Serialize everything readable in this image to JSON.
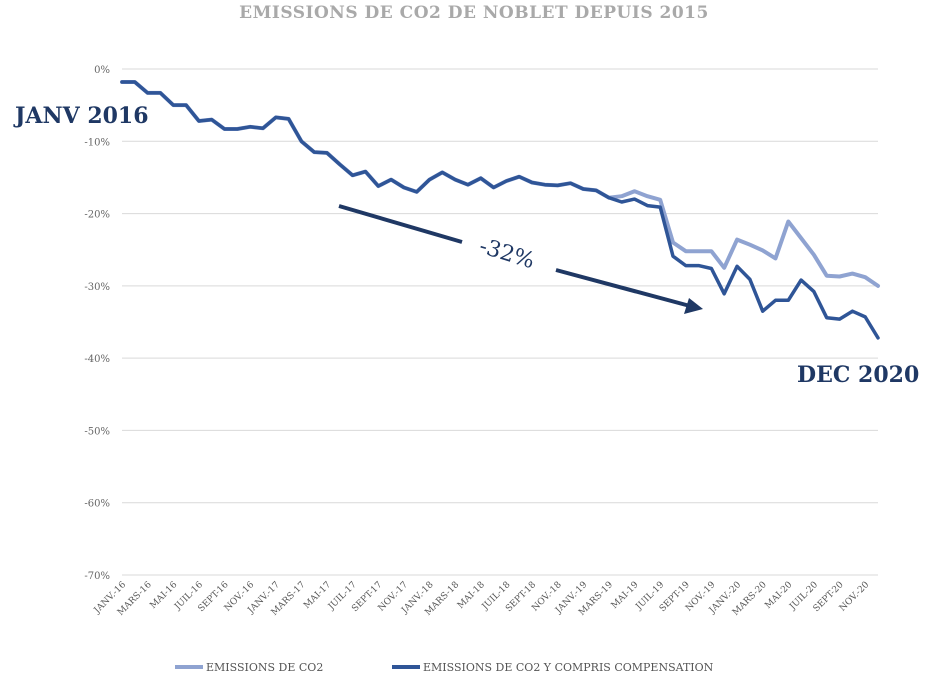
{
  "chart_data": {
    "type": "line",
    "title": "EMISSIONS DE CO2 DE NOBLET DEPUIS 2015",
    "xlabel": "",
    "ylabel": "",
    "ylim": [
      -70,
      0
    ],
    "yticks": [
      "0%",
      "-10%",
      "-20%",
      "-30%",
      "-40%",
      "-50%",
      "-60%",
      "-70%"
    ],
    "ytick_values": [
      0,
      -10,
      -20,
      -30,
      -40,
      -50,
      -60,
      -70
    ],
    "grid": true,
    "legend_position": "bottom",
    "x_tick_labels": [
      "JANV.-16",
      "MARS-16",
      "MAI-16",
      "JUIL-16",
      "SEPT-16",
      "NOV.-16",
      "JANV.-17",
      "MARS-17",
      "MAI-17",
      "JUIL-17",
      "SEPT-17",
      "NOV.-17",
      "JANV.-18",
      "MARS-18",
      "MAI-18",
      "JUIL-18",
      "SEPT-18",
      "NOV.-18",
      "JANV.-19",
      "MARS-19",
      "MAI-19",
      "JUIL-19",
      "SEPT-19",
      "NOV.-19",
      "JANV.-20",
      "MARS-20",
      "MAI-20",
      "JUIL-20",
      "SEPT-20",
      "NOV.-20"
    ],
    "series": [
      {
        "name": "EMISSIONS DE CO2",
        "color": "#8fa3d1",
        "values": [
          -1.8,
          -1.8,
          -3.3,
          -3.3,
          -5,
          -5,
          -7.2,
          -7,
          -8.3,
          -8.3,
          -8,
          -8.2,
          -6.7,
          -6.9,
          -10,
          -11.5,
          -11.6,
          -13.2,
          -14.7,
          -14.2,
          -16.2,
          -15.3,
          -16.4,
          -17,
          -15.3,
          -14.3,
          -15.3,
          -16,
          -15.1,
          -16.4,
          -15.5,
          -14.9,
          -15.7,
          -16,
          -16.1,
          -15.8,
          -16.6,
          -16.8,
          -17.8,
          -17.6,
          -16.9,
          -17.6,
          -18.1,
          -24,
          -25.2,
          -25.2,
          -25.2,
          -27.5,
          -23.6,
          -24.3,
          -25.1,
          -26.2,
          -21.1,
          -23.4,
          -25.7,
          -28.6,
          -28.7,
          -28.3,
          -28.8,
          -30
        ]
      },
      {
        "name": "EMISSIONS DE CO2 Y COMPRIS COMPENSATION",
        "color": "#2f5597",
        "values": [
          -1.8,
          -1.8,
          -3.3,
          -3.3,
          -5,
          -5,
          -7.2,
          -7,
          -8.3,
          -8.3,
          -8,
          -8.2,
          -6.7,
          -6.9,
          -10,
          -11.5,
          -11.6,
          -13.2,
          -14.7,
          -14.2,
          -16.2,
          -15.3,
          -16.4,
          -17,
          -15.3,
          -14.3,
          -15.3,
          -16,
          -15.1,
          -16.4,
          -15.5,
          -14.9,
          -15.7,
          -16,
          -16.1,
          -15.8,
          -16.6,
          -16.8,
          -17.8,
          -18.4,
          -18,
          -18.9,
          -19.1,
          -25.9,
          -27.2,
          -27.2,
          -27.6,
          -31.1,
          -27.3,
          -29.1,
          -33.5,
          -32,
          -32,
          -29.2,
          -30.8,
          -34.4,
          -34.6,
          -33.5,
          -34.3,
          -37.2
        ]
      }
    ],
    "annotations": {
      "start_label": "JANV 2016",
      "end_label": "DEC 2020",
      "change_label": "-32%"
    }
  }
}
